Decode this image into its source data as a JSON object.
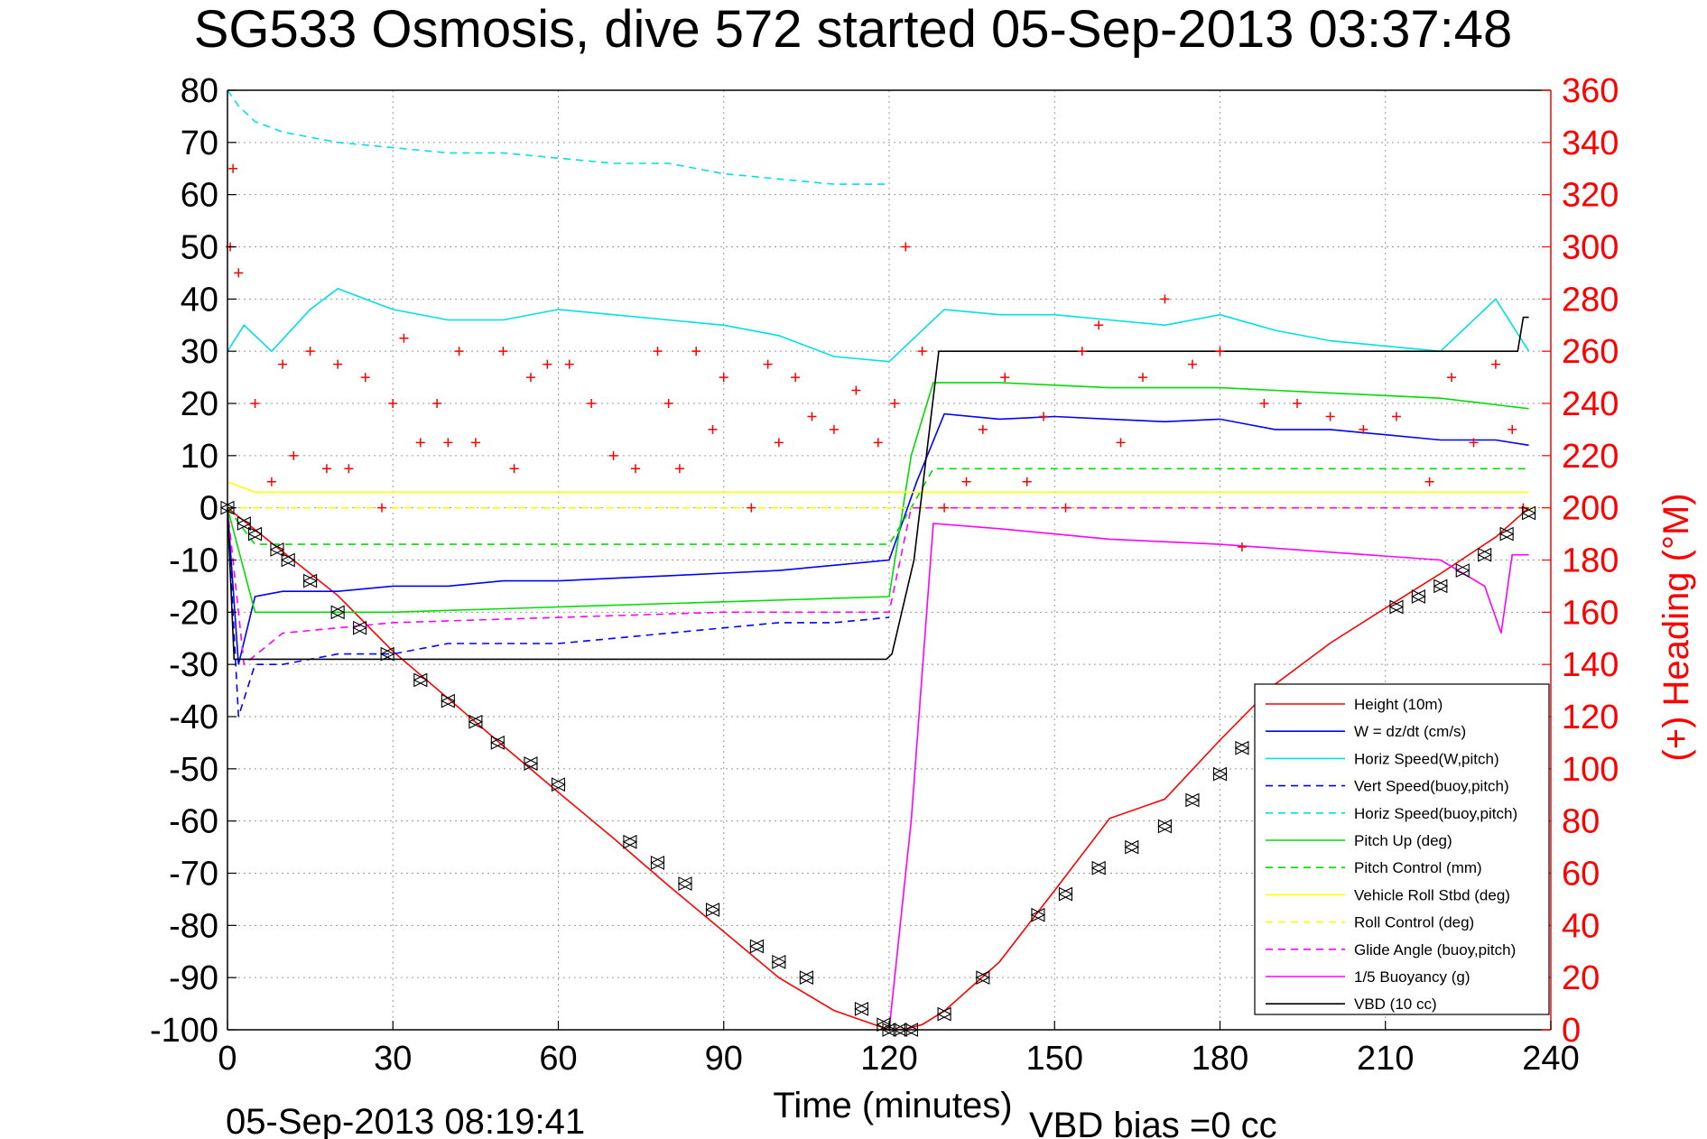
{
  "chart_data": {
    "type": "line",
    "title": "SG533 Osmosis, dive 572 started 05-Sep-2013 03:37:48",
    "xlabel": "Time (minutes)",
    "ylabel": "",
    "y2label": "(+) Heading (°M)",
    "xlim": [
      0,
      240
    ],
    "ylim": [
      -100,
      80
    ],
    "y2lim": [
      0,
      360
    ],
    "xticks": [
      "0",
      "30",
      "60",
      "90",
      "120",
      "150",
      "180",
      "210",
      "240"
    ],
    "yticks": [
      "80",
      "70",
      "60",
      "50",
      "40",
      "30",
      "20",
      "10",
      "0",
      "-10",
      "-20",
      "-30",
      "-40",
      "-50",
      "-60",
      "-70",
      "-80",
      "-90",
      "-100"
    ],
    "y2ticks": [
      "360",
      "340",
      "320",
      "300",
      "280",
      "260",
      "240",
      "220",
      "200",
      "180",
      "160",
      "140",
      "120",
      "100",
      "80",
      "60",
      "40",
      "20",
      "0"
    ],
    "grid": true,
    "legend_position": "bottom-right",
    "series": [
      {
        "name": "Height (10m)",
        "color": "#ff0000",
        "style": "solid",
        "x": [
          0,
          10,
          20,
          30,
          40,
          50,
          60,
          70,
          80,
          90,
          100,
          110,
          120,
          123,
          126,
          130,
          140,
          150,
          160,
          170,
          180,
          190,
          200,
          210,
          220,
          230,
          236
        ],
        "y": [
          0,
          -8.4,
          -16.8,
          -27.5,
          -36.5,
          -45.6,
          -54.5,
          -63.3,
          -72.4,
          -81.2,
          -90,
          -96.3,
          -100,
          -99.9,
          -99,
          -96.4,
          -87,
          -73.3,
          -59.5,
          -55.8,
          -44.5,
          -33.8,
          -25.9,
          -19.2,
          -12.6,
          -5.6,
          0
        ]
      },
      {
        "name": "W = dz/dt (cm/s)",
        "color": "#0000ff",
        "style": "solid",
        "x": [
          0,
          2,
          5,
          10,
          20,
          30,
          40,
          50,
          60,
          70,
          80,
          90,
          100,
          110,
          120,
          125,
          130,
          140,
          150,
          160,
          170,
          180,
          190,
          200,
          210,
          220,
          230,
          236
        ],
        "y": [
          0,
          -30,
          -17,
          -16,
          -16,
          -15,
          -15,
          -14,
          -14,
          -13.5,
          -13,
          -12.5,
          -12,
          -11,
          -10,
          5,
          18,
          17,
          17.5,
          17,
          16.5,
          17,
          15,
          15,
          14,
          13,
          13,
          12
        ]
      },
      {
        "name": "Horiz Speed(W,pitch)",
        "color": "#00e0e0",
        "style": "solid",
        "x": [
          0,
          3,
          8,
          15,
          20,
          30,
          40,
          50,
          60,
          70,
          80,
          90,
          100,
          110,
          120,
          125,
          130,
          140,
          150,
          160,
          170,
          180,
          190,
          200,
          210,
          220,
          230,
          236
        ],
        "y": [
          30,
          35,
          30,
          38,
          42,
          38,
          36,
          36,
          38,
          37,
          36,
          35,
          33,
          29,
          28,
          33,
          38,
          37,
          37,
          36,
          35,
          37,
          34,
          32,
          31,
          30,
          40,
          30
        ]
      },
      {
        "name": "Vert Speed(buoy,pitch)",
        "color": "#0000ff",
        "style": "dashed",
        "x": [
          0,
          2,
          5,
          10,
          20,
          30,
          40,
          50,
          60,
          70,
          80,
          90,
          100,
          110,
          120
        ],
        "y": [
          0,
          -40,
          -30,
          -30,
          -28,
          -28,
          -26,
          -26,
          -26,
          -25,
          -24,
          -23,
          -22,
          -22,
          -21
        ]
      },
      {
        "name": "Horiz Speed(buoy,pitch)",
        "color": "#00e0e0",
        "style": "dashed",
        "x": [
          0,
          2,
          5,
          10,
          20,
          30,
          40,
          50,
          60,
          70,
          80,
          90,
          100,
          110,
          120
        ],
        "y": [
          80,
          77,
          74,
          72,
          70,
          69,
          68,
          68,
          67,
          66,
          66,
          64,
          63,
          62,
          62
        ]
      },
      {
        "name": "Pitch Up (deg)",
        "color": "#00dd00",
        "style": "solid",
        "x": [
          0,
          5,
          10,
          30,
          60,
          90,
          120,
          124,
          128,
          140,
          160,
          180,
          200,
          220,
          236
        ],
        "y": [
          0,
          -20,
          -20,
          -20,
          -19,
          -18,
          -17,
          10,
          24,
          24,
          23,
          23,
          22,
          21,
          19
        ]
      },
      {
        "name": "Pitch Control (mm)",
        "color": "#00dd00",
        "style": "dashed",
        "x": [
          0,
          5,
          10,
          120,
          124,
          128,
          236
        ],
        "y": [
          0,
          -7,
          -7,
          -7,
          0,
          7.5,
          7.5
        ]
      },
      {
        "name": "Vehicle Roll Stbd (deg)",
        "color": "#ffff00",
        "style": "solid",
        "x": [
          0,
          5,
          30,
          60,
          90,
          120,
          130,
          160,
          190,
          220,
          236
        ],
        "y": [
          5,
          3,
          3,
          3,
          3,
          3,
          3,
          3,
          3,
          3,
          3
        ]
      },
      {
        "name": "Roll Control (deg)",
        "color": "#ffff00",
        "style": "dashed",
        "x": [
          0,
          240
        ],
        "y": [
          0,
          0
        ]
      },
      {
        "name": "Glide Angle (buoy,pitch)",
        "color": "#ff00ff",
        "style": "dashed",
        "x": [
          0,
          3,
          10,
          30,
          60,
          90,
          120,
          124,
          236
        ],
        "y": [
          0,
          -30,
          -24,
          -22,
          -21,
          -20,
          -20,
          0,
          0
        ]
      },
      {
        "name": "1/5 Buoyancy (g)",
        "color": "#ff00ff",
        "style": "solid",
        "x": [
          120,
          124,
          128,
          140,
          160,
          180,
          200,
          220,
          228,
          231,
          233,
          236
        ],
        "y": [
          -100,
          -60,
          -3,
          -4,
          -6,
          -7,
          -8.5,
          -10,
          -15,
          -24,
          -9,
          -9
        ]
      },
      {
        "name": "VBD (10 cc)",
        "color": "#000000",
        "style": "solid",
        "x": [
          0,
          1.2,
          2,
          60,
          119.5,
          120.5,
          124.5,
          129,
          180,
          234,
          235,
          236
        ],
        "y": [
          0,
          -29,
          -29,
          -29,
          -29,
          -28,
          -10,
          30,
          30,
          30,
          36.5,
          36.5
        ]
      }
    ],
    "heading_deg": {
      "name": "(+) Heading",
      "color": "#ff0000",
      "marker": "+",
      "x": [
        0.5,
        1,
        2,
        5,
        8,
        10,
        12,
        15,
        18,
        20,
        22,
        25,
        28,
        30,
        32,
        35,
        38,
        40,
        42,
        45,
        50,
        52,
        55,
        58,
        62,
        66,
        70,
        74,
        78,
        80,
        82,
        85,
        88,
        90,
        95,
        98,
        100,
        103,
        106,
        110,
        114,
        118,
        121,
        123,
        126,
        130,
        134,
        137,
        141,
        145,
        148,
        152,
        155,
        158,
        162,
        166,
        170,
        175,
        180,
        184,
        188,
        194,
        200,
        206,
        212,
        218,
        222,
        226,
        230,
        233,
        235
      ],
      "y": [
        300,
        330,
        290,
        240,
        210,
        255,
        220,
        260,
        215,
        255,
        215,
        250,
        200,
        240,
        265,
        225,
        240,
        225,
        260,
        225,
        260,
        215,
        250,
        255,
        255,
        240,
        220,
        215,
        260,
        240,
        215,
        260,
        230,
        250,
        200,
        255,
        225,
        250,
        235,
        230,
        245,
        225,
        240,
        300,
        260,
        200,
        210,
        230,
        250,
        210,
        235,
        200,
        260,
        270,
        225,
        250,
        280,
        255,
        260,
        185,
        240,
        240,
        235,
        230,
        235,
        210,
        250,
        225,
        255,
        230,
        200
      ]
    },
    "depth_markers": {
      "marker": "triangle",
      "color": "#000000",
      "x": [
        0,
        3,
        5,
        9,
        11,
        15,
        20,
        24,
        29,
        35,
        40,
        45,
        49,
        55,
        60,
        73,
        78,
        83,
        88,
        96,
        100,
        105,
        115,
        119,
        120,
        122,
        124,
        130,
        137,
        147,
        152,
        158,
        164,
        170,
        175,
        180,
        184,
        188,
        212,
        216,
        220,
        224,
        228,
        232,
        236
      ],
      "y": [
        0,
        -3,
        -5,
        -8,
        -10,
        -14,
        -20,
        -23,
        -28,
        -33,
        -37,
        -41,
        -45,
        -49,
        -53,
        -64,
        -68,
        -72,
        -77,
        -84,
        -87,
        -90,
        -96,
        -99,
        -100,
        -100,
        -100,
        -97,
        -90,
        -78,
        -74,
        -69,
        -65,
        -61,
        -56,
        -51,
        -46,
        -42,
        -19,
        -17,
        -15,
        -12,
        -9,
        -5,
        -1
      ]
    }
  },
  "footer": {
    "timestamp": "05-Sep-2013 08:19:41",
    "vbd_bias": "VBD bias =0 cc"
  }
}
